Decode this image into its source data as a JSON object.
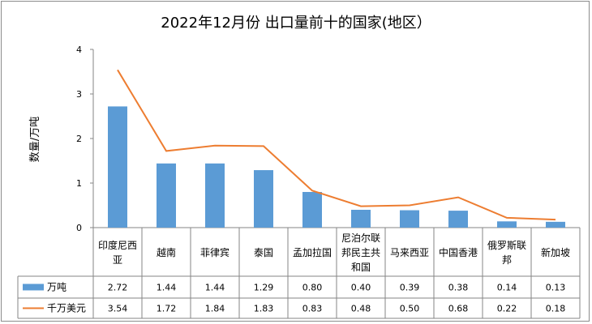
{
  "chart_data": {
    "type": "bar",
    "title": "2022年12月份 出口量前十的国家(地区）",
    "ylabel": "数量/万吨",
    "xlabel": "",
    "ylim": [
      0,
      4
    ],
    "yticks": [
      "0",
      "1",
      "2",
      "3",
      "4"
    ],
    "grid": false,
    "legend": "table-left",
    "categories": [
      "印度尼西亚",
      "越南",
      "菲律宾",
      "泰国",
      "孟加拉国",
      "尼泊尔联邦民主共和国",
      "马来西亚",
      "中国香港",
      "俄罗斯联邦",
      "新加坡"
    ],
    "category_lines": [
      [
        "印度尼西",
        "亚"
      ],
      [
        "越南"
      ],
      [
        "菲律宾"
      ],
      [
        "泰国"
      ],
      [
        "孟加拉国"
      ],
      [
        "尼泊尔联",
        "邦民主共",
        "和国"
      ],
      [
        "马来西亚"
      ],
      [
        "中国香港"
      ],
      [
        "俄罗斯联",
        "邦"
      ],
      [
        "新加坡"
      ]
    ],
    "series": [
      {
        "name": "万吨",
        "type": "bar",
        "color": "#5b9bd5",
        "values": [
          2.72,
          1.44,
          1.44,
          1.29,
          0.8,
          0.4,
          0.39,
          0.38,
          0.14,
          0.13
        ],
        "labels": [
          "2.72",
          "1.44",
          "1.44",
          "1.29",
          "0.80",
          "0.40",
          "0.39",
          "0.38",
          "0.14",
          "0.13"
        ]
      },
      {
        "name": "千万美元",
        "type": "line",
        "color": "#ed7d31",
        "values": [
          3.54,
          1.72,
          1.84,
          1.83,
          0.83,
          0.48,
          0.5,
          0.68,
          0.22,
          0.18
        ],
        "labels": [
          "3.54",
          "1.72",
          "1.84",
          "1.83",
          "0.83",
          "0.48",
          "0.50",
          "0.68",
          "0.22",
          "0.18"
        ]
      }
    ]
  }
}
